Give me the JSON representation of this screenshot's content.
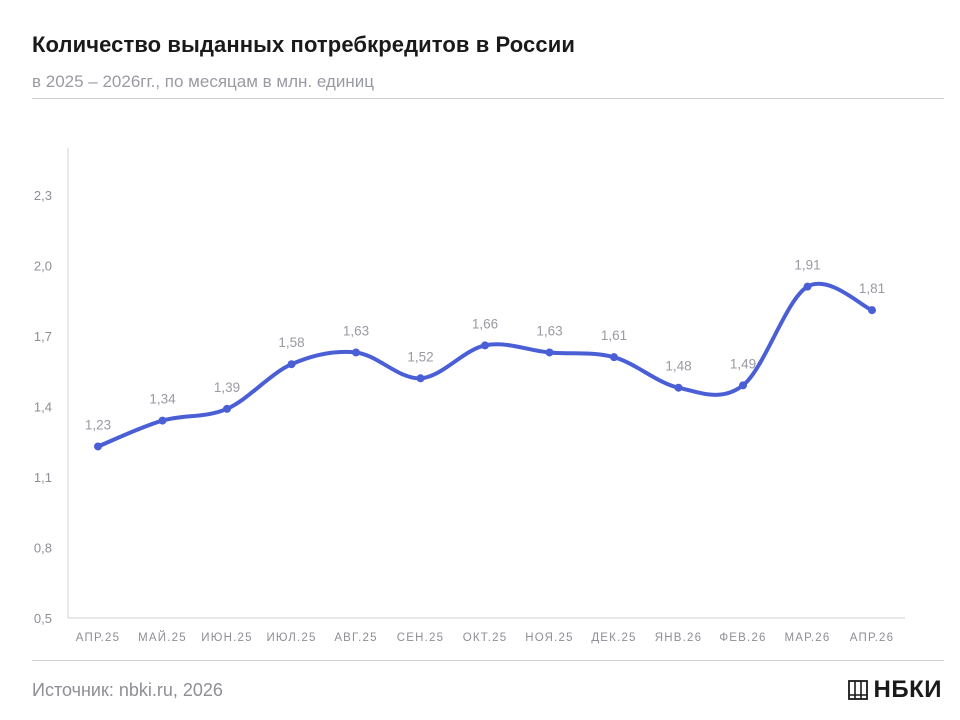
{
  "header": {
    "title": "Количество выданных потребкредитов в России",
    "subtitle": "в 2025 – 2026гг., по месяцам в млн. единиц"
  },
  "footer": {
    "source": "Источник: nbki.ru, 2026",
    "logo_text": "НБКИ"
  },
  "colors": {
    "line": "#4a5fd6",
    "axis": "#d0d0d6",
    "text_muted": "#8e8e96"
  },
  "chart_data": {
    "type": "line",
    "title": "Количество выданных потребкредитов в России",
    "subtitle": "в 2025 – 2026гг., по месяцам в млн. единиц",
    "categories": [
      "АПР.25",
      "МАЙ.25",
      "ИЮН.25",
      "ИЮЛ.25",
      "АВГ.25",
      "СЕН.25",
      "ОКТ.25",
      "НОЯ.25",
      "ДЕК.25",
      "ЯНВ.26",
      "ФЕВ.26",
      "МАР.26",
      "АПР.26"
    ],
    "series": [
      {
        "values": [
          1.23,
          1.34,
          1.39,
          1.58,
          1.63,
          1.52,
          1.66,
          1.63,
          1.61,
          1.48,
          1.49,
          1.91,
          1.81
        ],
        "labels": [
          "1,23",
          "1,34",
          "1,39",
          "1,58",
          "1,63",
          "1,52",
          "1,66",
          "1,63",
          "1,61",
          "1,48",
          "1,49",
          "1,91",
          "1,81"
        ]
      }
    ],
    "y_ticks": [
      0.5,
      0.8,
      1.1,
      1.4,
      1.7,
      2.0,
      2.3
    ],
    "y_tick_labels": [
      "0,5",
      "0,8",
      "1,1",
      "1,4",
      "1,7",
      "2,0",
      "2,3"
    ],
    "ylim": [
      0.5,
      2.5
    ],
    "grid": false,
    "legend": "none"
  }
}
